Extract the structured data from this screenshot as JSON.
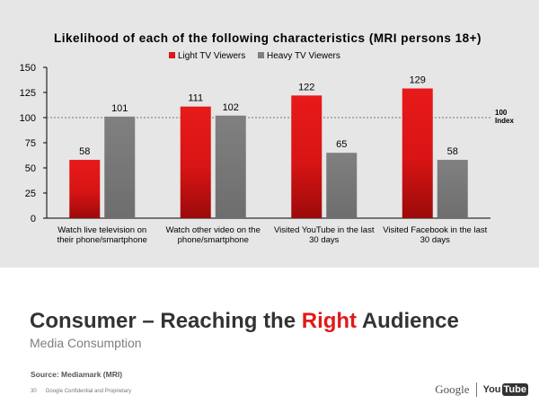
{
  "chart_data": {
    "type": "bar",
    "title": "Likelihood of each of the following characteristics (MRI persons 18+)",
    "categories": [
      [
        "Watch live television on",
        "their phone/smartphone"
      ],
      [
        "Watch other video on the",
        "phone/smartphone"
      ],
      [
        "Visited YouTube in the last",
        "30 days"
      ],
      [
        "Visited Facebook in the last",
        "30 days"
      ]
    ],
    "series": [
      {
        "name": "Light TV Viewers",
        "values": [
          58,
          111,
          122,
          129
        ],
        "color": "#d7191c"
      },
      {
        "name": "Heavy TV Viewers",
        "values": [
          101,
          102,
          65,
          58
        ],
        "color": "#7f7f7f"
      }
    ],
    "ylim": [
      0,
      150
    ],
    "yticks": [
      0,
      25,
      50,
      75,
      100,
      125,
      150
    ],
    "reference_line": {
      "value": 100,
      "label_lines": [
        "100",
        "Index"
      ]
    },
    "legend_position": "top-right",
    "grid": false
  },
  "slide": {
    "headline_pre": "Consumer – Reaching the ",
    "headline_accent": "Right",
    "headline_post": " Audience",
    "subheadline": "Media Consumption",
    "source": "Source: Mediamark (MRI)",
    "page_number": "30",
    "confidential": "Google Confidential and Proprietary",
    "logo_google": "Google",
    "logo_you": "You",
    "logo_tube": "Tube"
  }
}
